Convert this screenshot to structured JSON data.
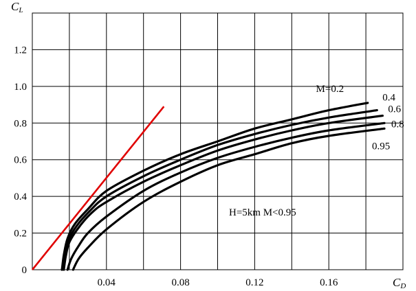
{
  "chart_data": {
    "type": "line",
    "xlabel": "C",
    "xlabel_sub": "D",
    "ylabel": "C",
    "ylabel_sub": "L",
    "xlim": [
      0,
      0.2
    ],
    "ylim": [
      0,
      1.4
    ],
    "x_ticks": [
      "0.04",
      "0.08",
      "0.12",
      "0.16"
    ],
    "x_tick_values": [
      0.04,
      0.08,
      0.12,
      0.16
    ],
    "y_ticks": [
      "0",
      "0.2",
      "0.4",
      "0.6",
      "0.8",
      "1.0",
      "1.2"
    ],
    "y_tick_values": [
      0,
      0.2,
      0.4,
      0.6,
      0.8,
      1.0,
      1.2
    ],
    "grid": true,
    "annotation": "H=5km M<0.95",
    "reference_line": {
      "color": "#e00000",
      "points": [
        [
          0,
          0
        ],
        [
          0.071,
          0.89
        ]
      ]
    },
    "series": [
      {
        "name": "M=0.2",
        "points": [
          [
            0.016,
            0
          ],
          [
            0.017,
            0.08
          ],
          [
            0.019,
            0.17
          ],
          [
            0.023,
            0.25
          ],
          [
            0.03,
            0.33
          ],
          [
            0.04,
            0.43
          ],
          [
            0.06,
            0.54
          ],
          [
            0.08,
            0.63
          ],
          [
            0.1,
            0.7
          ],
          [
            0.12,
            0.77
          ],
          [
            0.14,
            0.82
          ],
          [
            0.16,
            0.87
          ],
          [
            0.181,
            0.91
          ]
        ]
      },
      {
        "name": "0.4",
        "points": [
          [
            0.016,
            0
          ],
          [
            0.0175,
            0.08
          ],
          [
            0.0195,
            0.16
          ],
          [
            0.024,
            0.24
          ],
          [
            0.031,
            0.32
          ],
          [
            0.04,
            0.4
          ],
          [
            0.06,
            0.51
          ],
          [
            0.08,
            0.6
          ],
          [
            0.1,
            0.68
          ],
          [
            0.12,
            0.74
          ],
          [
            0.14,
            0.79
          ],
          [
            0.16,
            0.83
          ],
          [
            0.186,
            0.87
          ]
        ]
      },
      {
        "name": "0.6",
        "points": [
          [
            0.017,
            0
          ],
          [
            0.018,
            0.07
          ],
          [
            0.02,
            0.15
          ],
          [
            0.025,
            0.23
          ],
          [
            0.032,
            0.31
          ],
          [
            0.04,
            0.37
          ],
          [
            0.06,
            0.48
          ],
          [
            0.08,
            0.57
          ],
          [
            0.1,
            0.65
          ],
          [
            0.12,
            0.71
          ],
          [
            0.14,
            0.76
          ],
          [
            0.16,
            0.8
          ],
          [
            0.189,
            0.84
          ]
        ]
      },
      {
        "name": "0.8",
        "points": [
          [
            0.019,
            0
          ],
          [
            0.021,
            0.06
          ],
          [
            0.025,
            0.13
          ],
          [
            0.03,
            0.2
          ],
          [
            0.04,
            0.29
          ],
          [
            0.06,
            0.43
          ],
          [
            0.08,
            0.53
          ],
          [
            0.1,
            0.61
          ],
          [
            0.12,
            0.67
          ],
          [
            0.14,
            0.72
          ],
          [
            0.16,
            0.76
          ],
          [
            0.19,
            0.8
          ]
        ]
      },
      {
        "name": "0.95",
        "points": [
          [
            0.022,
            0
          ],
          [
            0.025,
            0.06
          ],
          [
            0.03,
            0.12
          ],
          [
            0.04,
            0.22
          ],
          [
            0.06,
            0.37
          ],
          [
            0.08,
            0.48
          ],
          [
            0.1,
            0.57
          ],
          [
            0.12,
            0.63
          ],
          [
            0.14,
            0.69
          ],
          [
            0.16,
            0.73
          ],
          [
            0.19,
            0.77
          ]
        ]
      }
    ]
  }
}
